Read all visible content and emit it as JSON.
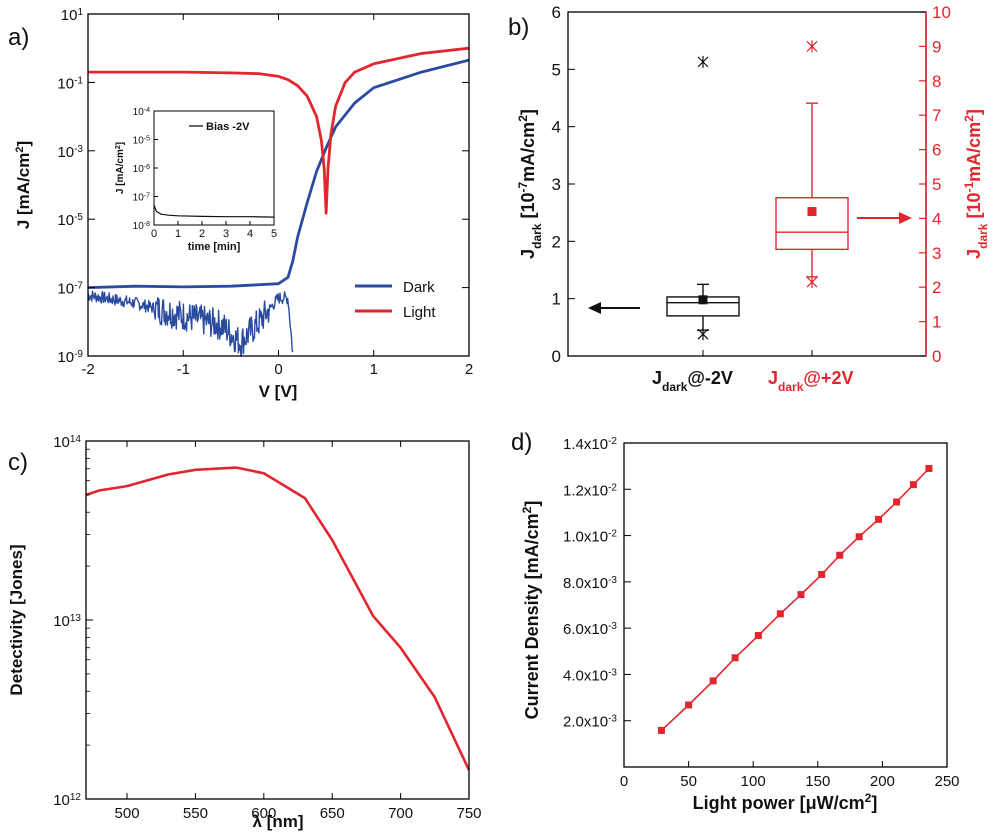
{
  "chart_data": [
    {
      "panel": "a)",
      "type": "line",
      "xlabel": "V [V]",
      "ylabel": "J [mA/cm",
      "ylabel_sup": "2",
      "ylabel_end": "]",
      "xlim": [
        -2,
        2
      ],
      "ylim": [
        1e-09,
        10
      ],
      "yscale": "log",
      "xticks": [
        "-2",
        "-1",
        "0",
        "1",
        "2"
      ],
      "yticks": [
        {
          "base": "10",
          "exp": "-9"
        },
        {
          "base": "10",
          "exp": "-7"
        },
        {
          "base": "10",
          "exp": "-5"
        },
        {
          "base": "10",
          "exp": "-3"
        },
        {
          "base": "10",
          "exp": "-1"
        },
        {
          "base": "10",
          "exp": "1"
        }
      ],
      "legend_position": "bottom-right",
      "series": [
        {
          "name": "Dark",
          "color": "#2b4ba0",
          "x": [
            -2,
            -1.5,
            -1,
            -0.5,
            0,
            0.1,
            0.15,
            0.2,
            0.3,
            0.4,
            0.5,
            0.6,
            0.8,
            1,
            1.5,
            2
          ],
          "y": [
            1e-07,
            1.1e-07,
            1.05e-07,
            1.1e-07,
            1.3e-07,
            2e-07,
            6e-07,
            3e-06,
            3e-05,
            0.00025,
            0.0012,
            0.005,
            0.025,
            0.07,
            0.2,
            0.45
          ]
        },
        {
          "name": "Light",
          "color": "#e3262e",
          "x": [
            -2,
            -1.5,
            -1,
            -0.5,
            -0.2,
            0,
            0.1,
            0.2,
            0.3,
            0.4,
            0.45,
            0.48,
            0.5,
            0.52,
            0.55,
            0.6,
            0.7,
            0.8,
            1,
            1.5,
            2
          ],
          "y": [
            0.2,
            0.2,
            0.2,
            0.19,
            0.18,
            0.15,
            0.12,
            0.08,
            0.04,
            0.01,
            0.002,
            0.0003,
            1.5e-05,
            0.0003,
            0.003,
            0.02,
            0.1,
            0.2,
            0.35,
            0.7,
            1.0
          ]
        }
      ],
      "noisy_dark_branch": {
        "color": "#2b4ba0",
        "x": [
          -2,
          -1.5,
          -1,
          -0.6,
          -0.4,
          -0.2,
          0,
          0.1,
          0.15
        ],
        "y": [
          6e-08,
          3.5e-08,
          1.5e-08,
          8e-09,
          2.5e-09,
          1e-08,
          5e-08,
          5e-08,
          1.2e-09
        ]
      },
      "inset": {
        "type": "line",
        "xlabel": "time [min]",
        "ylabel": "J [mA/cm",
        "ylabel_sup": "2",
        "ylabel_end": "]",
        "xlim": [
          0,
          5
        ],
        "ylim": [
          1e-08,
          0.0001
        ],
        "yscale": "log",
        "xticks": [
          "0",
          "1",
          "2",
          "3",
          "4",
          "5"
        ],
        "yticks": [
          {
            "base": "10",
            "exp": "-8"
          },
          {
            "base": "10",
            "exp": "-7"
          },
          {
            "base": "10",
            "exp": "-6"
          },
          {
            "base": "10",
            "exp": "-5"
          },
          {
            "base": "10",
            "exp": "-4"
          }
        ],
        "series": [
          {
            "name": "Bias -2V",
            "color": "#111111",
            "x": [
              0,
              0.1,
              0.3,
              0.6,
              1,
              2,
              3,
              4,
              5
            ],
            "y": [
              5e-08,
              3e-08,
              2.4e-08,
              2.2e-08,
              2.1e-08,
              2e-08,
              1.95e-08,
              1.95e-08,
              1.9e-08
            ]
          }
        ]
      }
    },
    {
      "panel": "b)",
      "type": "box",
      "ylabel_left_main": "J",
      "ylabel_left_sub": "dark",
      "ylabel_left_mid": " [10",
      "ylabel_left_sup": "-7",
      "ylabel_left_end": "mA/cm",
      "ylabel_left_sup2": "2",
      "ylabel_left_close": "]",
      "ylabel_right_main": "J",
      "ylabel_right_sub": "dark",
      "ylabel_right_mid": " [10",
      "ylabel_right_sup": "-1",
      "ylabel_right_end": "mA/cm",
      "ylabel_right_sup2": "2",
      "ylabel_right_close": "]",
      "ylim_left": [
        0,
        6
      ],
      "ylim_right": [
        0,
        10
      ],
      "yticks_left": [
        "0",
        "1",
        "2",
        "3",
        "4",
        "5",
        "6"
      ],
      "yticks_right": [
        "0",
        "1",
        "2",
        "3",
        "4",
        "5",
        "6",
        "7",
        "8",
        "9",
        "10"
      ],
      "left_color": "#111111",
      "right_color": "#e3262e",
      "boxes": [
        {
          "label_main": "J",
          "label_sub": "dark",
          "label_end": "@-2V",
          "color": "#111111",
          "axis": "left",
          "q1": 0.7,
          "median": 0.93,
          "q3": 1.03,
          "whisker_low": 0.45,
          "whisker_high": 1.25,
          "mean": 0.98,
          "min_marker": 0.38,
          "outlier": 5.13
        },
        {
          "label_main": "J",
          "label_sub": "dark",
          "label_end": "@+2V",
          "color": "#e3262e",
          "axis": "right",
          "q1": 3.1,
          "median": 3.6,
          "q3": 4.6,
          "whisker_low": 2.3,
          "whisker_high": 7.35,
          "mean": 4.2,
          "min_marker": 2.15,
          "outlier": 9.0
        }
      ]
    },
    {
      "panel": "c)",
      "type": "line",
      "xlabel": "λ [nm]",
      "ylabel": "Detectivity [Jones]",
      "xlim": [
        470,
        750
      ],
      "ylim": [
        1000000000000.0,
        100000000000000.0
      ],
      "yscale": "log",
      "xticks": [
        "500",
        "550",
        "600",
        "650",
        "700",
        "750"
      ],
      "yticks": [
        {
          "base": "10",
          "exp": "12"
        },
        {
          "base": "10",
          "exp": "13"
        },
        {
          "base": "10",
          "exp": "14"
        }
      ],
      "series": [
        {
          "name": "",
          "color": "#e3262e",
          "x": [
            470,
            480,
            500,
            530,
            550,
            580,
            600,
            630,
            650,
            680,
            700,
            725,
            750
          ],
          "y": [
            50000000000000.0,
            53000000000000.0,
            56000000000000.0,
            65000000000000.0,
            69000000000000.0,
            71000000000000.0,
            66000000000000.0,
            48000000000000.0,
            28000000000000.0,
            10500000000000.0,
            7000000000000.0,
            3700000000000.0,
            1450000000000.0
          ]
        }
      ]
    },
    {
      "panel": "d)",
      "type": "scatter",
      "xlabel_main": "Light power [μW/cm",
      "xlabel_sup": "2",
      "xlabel_end": "]",
      "ylabel_main": "Current Density [mA/cm",
      "ylabel_sup": "2",
      "ylabel_end": "]",
      "xlim": [
        0,
        250
      ],
      "ylim": [
        0,
        0.014
      ],
      "xticks": [
        "0",
        "50",
        "100",
        "150",
        "200",
        "250"
      ],
      "yticks": [
        {
          "value": 0.002,
          "mant": "2.0x10",
          "exp": "-3"
        },
        {
          "value": 0.004,
          "mant": "4.0x10",
          "exp": "-3"
        },
        {
          "value": 0.006,
          "mant": "6.0x10",
          "exp": "-3"
        },
        {
          "value": 0.008,
          "mant": "8.0x10",
          "exp": "-3"
        },
        {
          "value": 0.01,
          "mant": "1.0x10",
          "exp": "-2"
        },
        {
          "value": 0.012,
          "mant": "1.2x10",
          "exp": "-2"
        },
        {
          "value": 0.014,
          "mant": "1.4x10",
          "exp": "-2"
        }
      ],
      "series": [
        {
          "name": "",
          "color": "#e3262e",
          "marker": "square",
          "x": [
            29,
            50,
            69,
            86,
            104,
            121,
            137,
            153,
            167,
            182,
            197,
            211,
            224,
            236
          ],
          "y": [
            0.00158,
            0.00268,
            0.00372,
            0.00472,
            0.00568,
            0.00662,
            0.00745,
            0.00832,
            0.00915,
            0.00995,
            0.0107,
            0.01145,
            0.0122,
            0.0129
          ]
        }
      ]
    }
  ]
}
